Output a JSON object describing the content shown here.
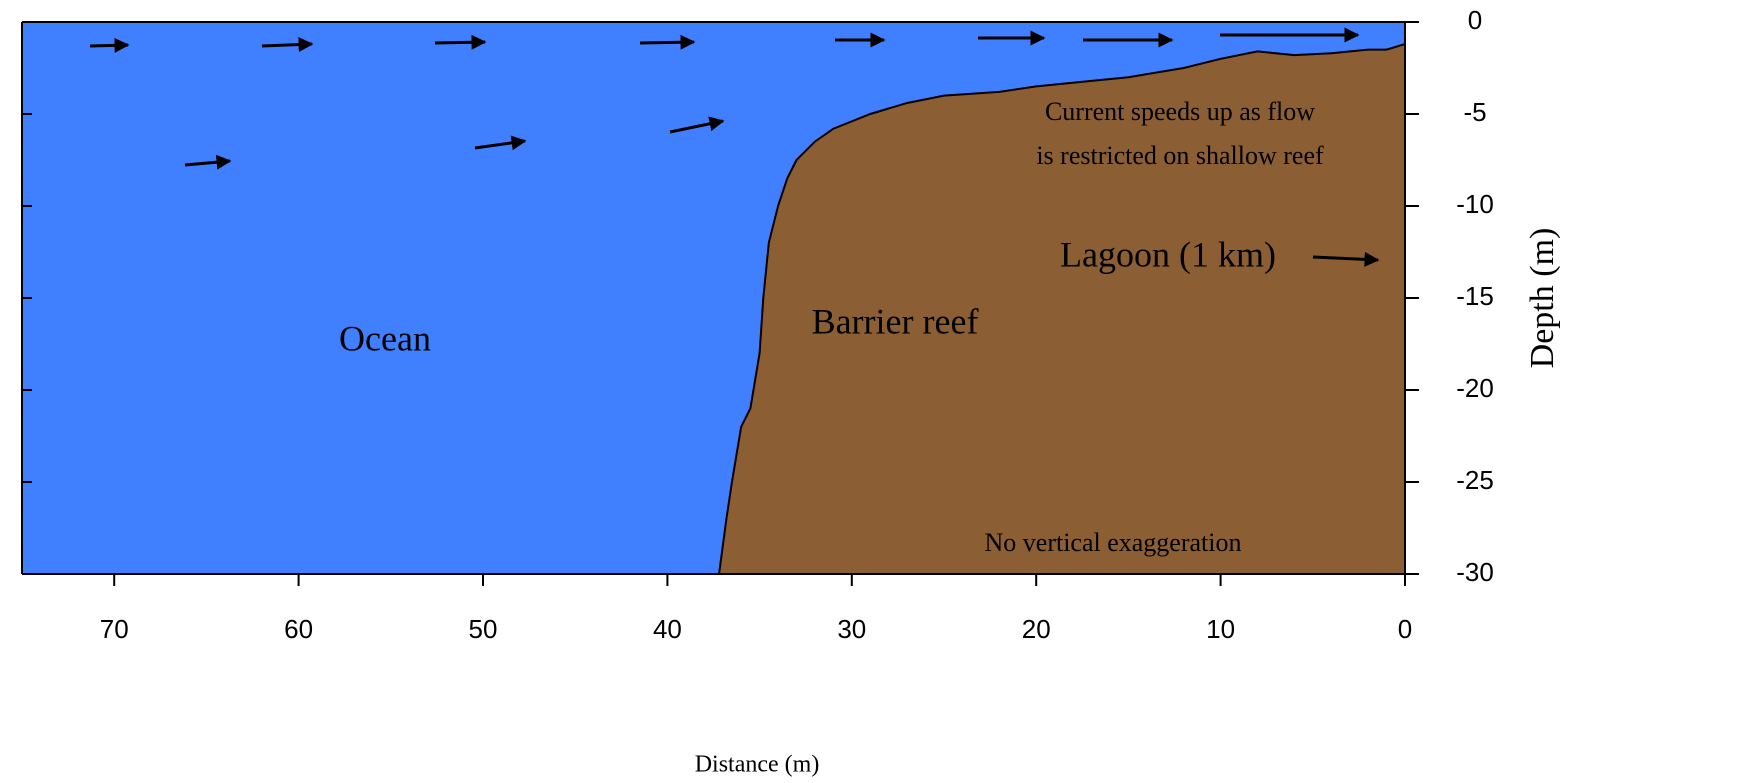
{
  "chart_data": {
    "type": "area",
    "x_label": "Distance (m)",
    "y_label": "Depth (m)",
    "x": [
      37.2,
      36.8,
      36.5,
      36,
      35.5,
      35,
      34.8,
      34.5,
      34,
      33.5,
      33,
      32,
      31,
      29,
      27,
      25,
      22,
      20,
      17,
      15,
      12,
      10,
      8,
      6,
      4,
      2,
      1,
      0
    ],
    "values": [
      -30,
      -27,
      -25,
      -22,
      -21,
      -18,
      -15,
      -12,
      -10,
      -8.5,
      -7.5,
      -6.5,
      -5.8,
      -5,
      -4.4,
      -4,
      -3.8,
      -3.5,
      -3.2,
      -3,
      -2.5,
      -2,
      -1.6,
      -1.8,
      -1.7,
      -1.5,
      -1.5,
      -1.2
    ],
    "ocean_color": "#4080ff",
    "reef_color": "#8b5e34",
    "xlim": [
      75,
      0
    ],
    "xticks": [
      70,
      60,
      50,
      40,
      30,
      20,
      10,
      0
    ],
    "ylim": [
      -30,
      0
    ],
    "yticks": [
      0,
      -5,
      -10,
      -15,
      -20,
      -25,
      -30
    ],
    "annotations": {
      "ocean": "Ocean",
      "reef": "Barrier reef",
      "lagoon": "Lagoon (1 km)",
      "current": [
        "Current speeds up as flow",
        "is restricted on shallow reef"
      ],
      "note": "No vertical exaggeration"
    }
  }
}
